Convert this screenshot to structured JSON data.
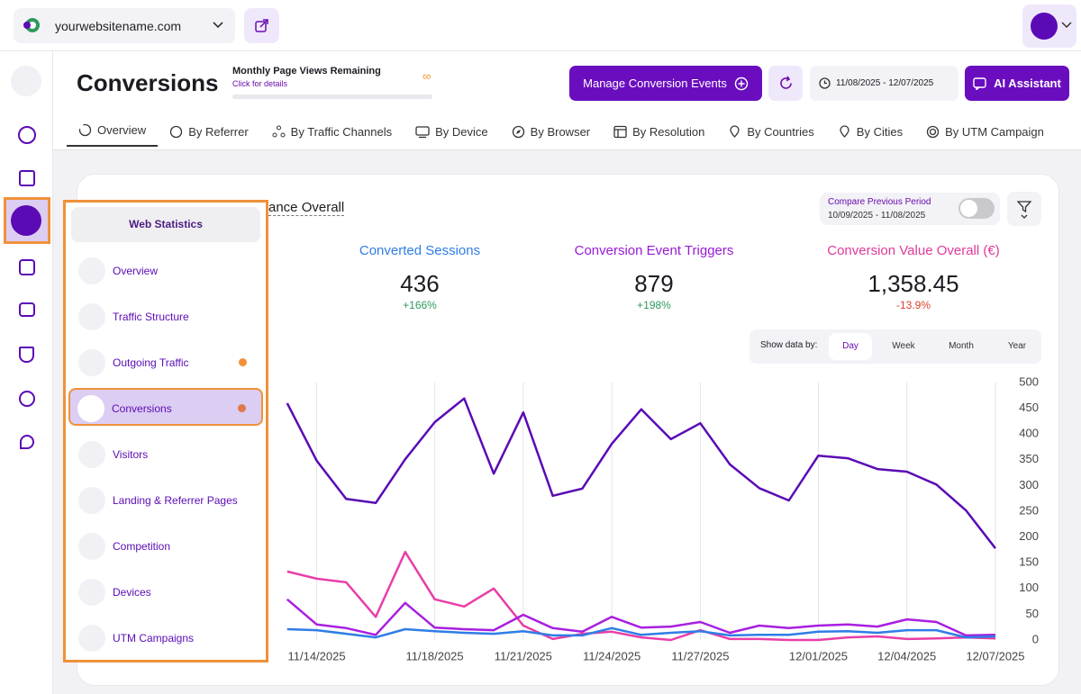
{
  "header": {
    "site": "yourwebsitename.com"
  },
  "page": {
    "title": "Conversions",
    "quota_title": "Monthly Page Views Remaining",
    "quota_link": "Click for details",
    "quota_value": "∞",
    "manage_button": "Manage Conversion Events",
    "date_range": "11/08/2025 - 12/07/2025",
    "ai_button": "AI Assistant"
  },
  "tabs": [
    "Overview",
    "By Referrer",
    "By Traffic Channels",
    "By Device",
    "By Browser",
    "By Resolution",
    "By Countries",
    "By Cities",
    "By UTM Campaign"
  ],
  "card": {
    "title": "ance Overall",
    "compare_label": "Compare Previous Period",
    "compare_range": "10/09/2025 - 11/08/2025",
    "metrics": [
      {
        "label": "Converted Sessions",
        "value": "436",
        "change": "+166%",
        "color": "#2f7de6",
        "change_color": "#2e9a5c"
      },
      {
        "label": "Conversion Event Triggers",
        "value": "879",
        "change": "+198%",
        "color": "#9a1ad6",
        "change_color": "#2e9a5c"
      },
      {
        "label": "Conversion Value Overall (€)",
        "value": "1,358.45",
        "change": "-13.9%",
        "color": "#e03a9a",
        "change_color": "#d9412e"
      }
    ],
    "show_by_label": "Show data by:",
    "show_by_options": [
      "Day",
      "Week",
      "Month",
      "Year"
    ]
  },
  "menu": {
    "title": "Web Statistics",
    "items": [
      "Overview",
      "Traffic Structure",
      "Outgoing Traffic",
      "Conversions",
      "Visitors",
      "Landing & Referrer Pages",
      "Competition",
      "Devices",
      "UTM Campaigns"
    ]
  },
  "chart_data": {
    "type": "line",
    "categories": [
      null,
      null,
      null,
      null,
      null,
      null,
      "11/14/2025",
      null,
      null,
      null,
      "11/18/2025",
      null,
      null,
      "11/21/2025",
      null,
      null,
      "11/24/2025",
      null,
      null,
      "11/27/2025",
      null,
      null,
      null,
      "12/01/2025",
      null,
      null,
      "12/04/2025",
      null,
      null,
      "12/07/2025"
    ],
    "series": [
      {
        "color": "#5a0bb5",
        "values": [
          null,
          null,
          null,
          null,
          null,
          460,
          348,
          274,
          266,
          351,
          423,
          469,
          323,
          442,
          280,
          294,
          381,
          448,
          390,
          421,
          341,
          295,
          271,
          358,
          353,
          332,
          327,
          302,
          252,
          178
        ]
      },
      {
        "name": "Conversion Value Overall (€)",
        "color": "#e83ea8",
        "values": [
          null,
          null,
          null,
          null,
          null,
          133,
          119,
          112,
          45,
          171,
          79,
          65,
          100,
          28,
          2,
          12,
          16,
          5,
          0,
          19,
          2,
          2,
          0,
          0,
          5,
          7,
          2,
          3,
          5,
          3
        ]
      },
      {
        "name": "Conversion Event Triggers",
        "color": "#a81fe0",
        "values": [
          null,
          null,
          null,
          null,
          null,
          79,
          30,
          23,
          10,
          72,
          24,
          21,
          19,
          49,
          23,
          16,
          45,
          24,
          26,
          35,
          14,
          28,
          23,
          28,
          30,
          26,
          40,
          35,
          9,
          10
        ]
      },
      {
        "name": "Converted Sessions",
        "color": "#2f7de6",
        "values": [
          null,
          null,
          null,
          null,
          null,
          21,
          19,
          12,
          5,
          21,
          17,
          14,
          12,
          17,
          9,
          9,
          23,
          10,
          14,
          17,
          9,
          10,
          10,
          16,
          17,
          14,
          19,
          19,
          5,
          7
        ]
      }
    ],
    "ylim": [
      0,
      500
    ],
    "yticks": [
      0,
      50,
      100,
      150,
      200,
      250,
      300,
      350,
      400,
      450,
      500
    ],
    "grid": "x"
  }
}
